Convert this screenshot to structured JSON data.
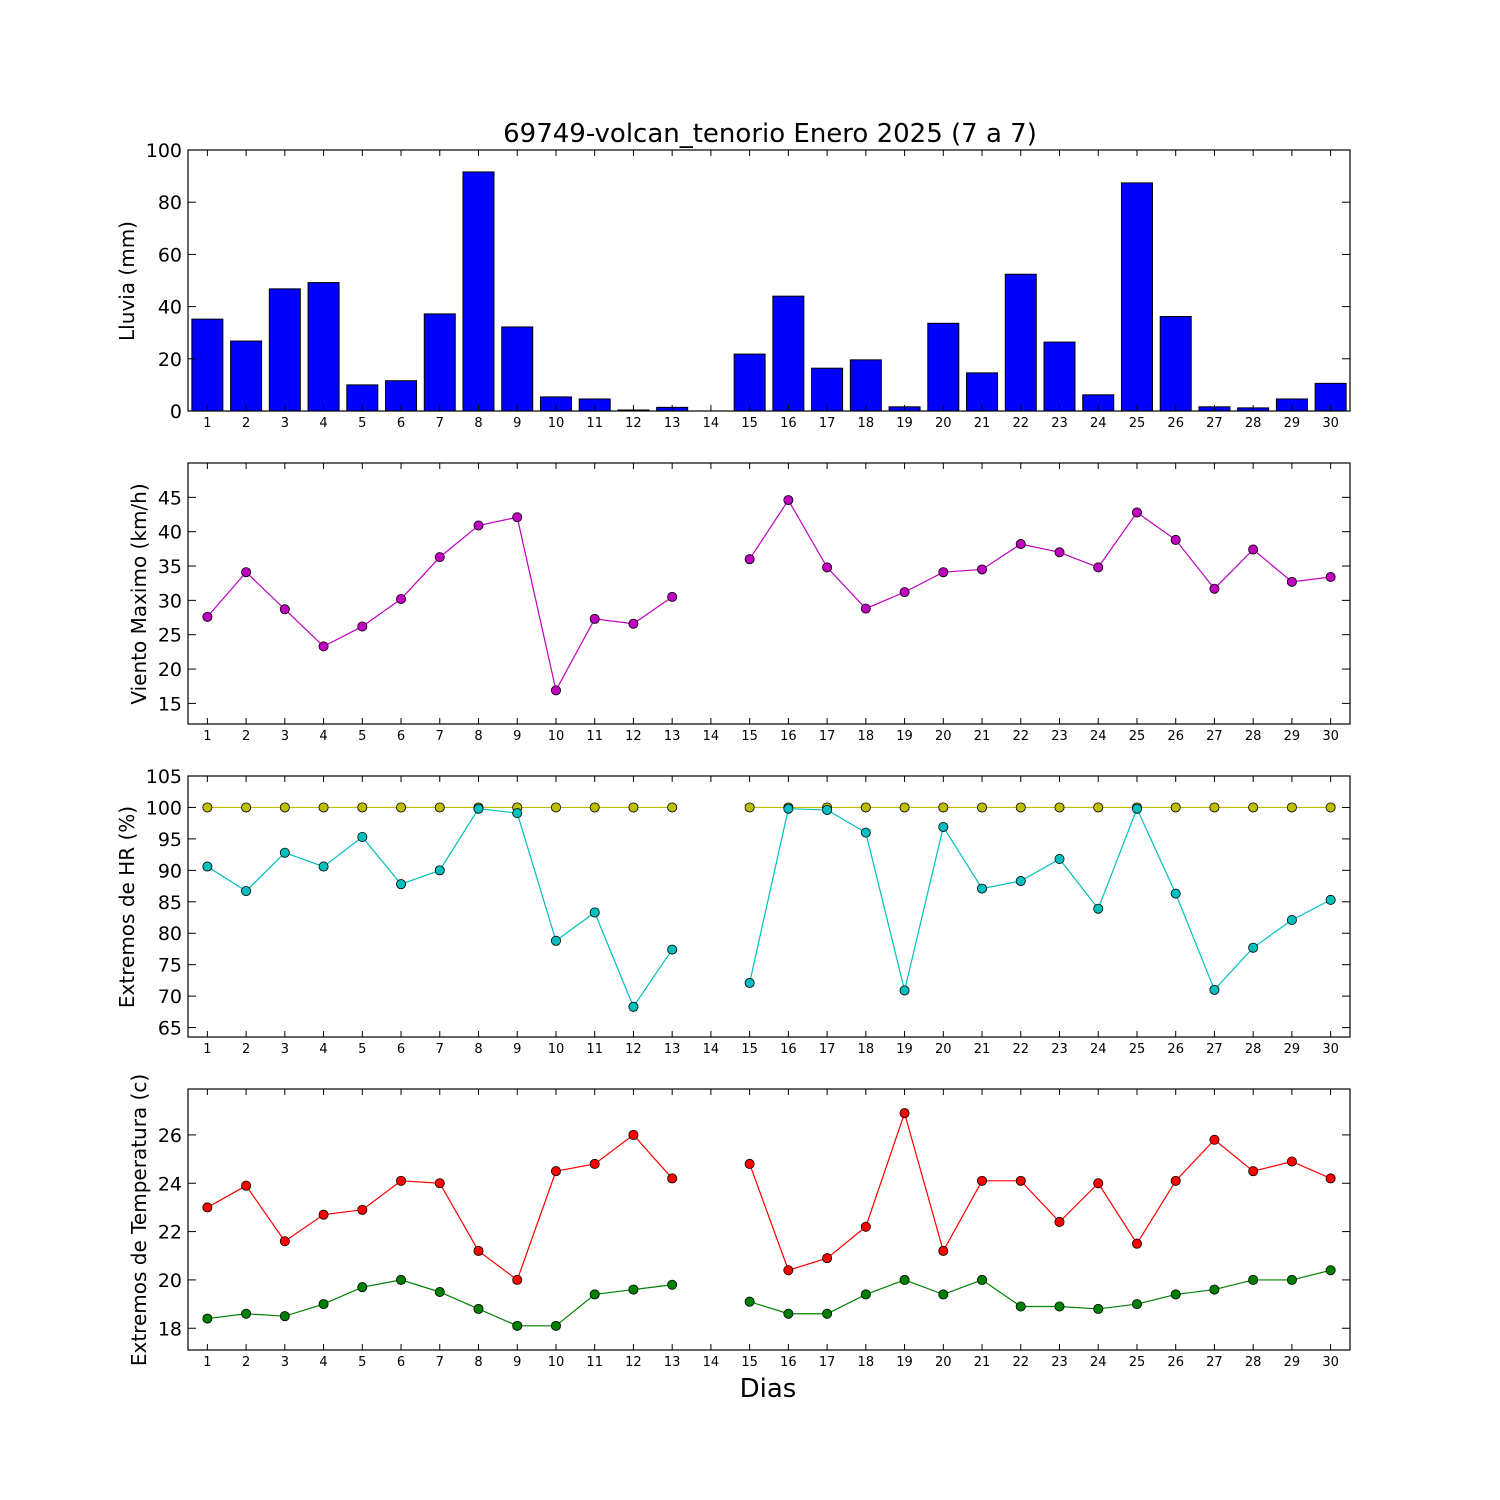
{
  "title": "69749-volcan_tenorio Enero 2025  (7 a 7)",
  "xlabel": "Dias",
  "chart_data": [
    {
      "type": "bar",
      "ylabel": "Lluvia (mm)",
      "ylim": [
        0,
        100
      ],
      "yticks": [
        0,
        20,
        40,
        60,
        80,
        100
      ],
      "categories": [
        "1",
        "2",
        "3",
        "4",
        "5",
        "6",
        "7",
        "8",
        "9",
        "10",
        "11",
        "12",
        "13",
        "14",
        "15",
        "16",
        "17",
        "18",
        "19",
        "20",
        "21",
        "22",
        "23",
        "24",
        "25",
        "26",
        "27",
        "28",
        "29",
        "30"
      ],
      "series": [
        {
          "color": "#0000ff",
          "values": [
            35.2,
            26.8,
            46.8,
            49.2,
            10.0,
            11.6,
            37.2,
            91.6,
            32.2,
            5.4,
            4.6,
            0.4,
            1.4,
            null,
            21.8,
            44.0,
            16.4,
            19.6,
            1.6,
            33.6,
            14.6,
            52.4,
            26.4,
            6.2,
            87.4,
            36.2,
            1.6,
            1.2,
            4.6,
            10.6
          ]
        }
      ]
    },
    {
      "type": "line",
      "ylabel": "Viento Maximo (km/h)",
      "ylim": [
        12,
        50
      ],
      "yticks": [
        15,
        20,
        25,
        30,
        35,
        40,
        45
      ],
      "categories": [
        "1",
        "2",
        "3",
        "4",
        "5",
        "6",
        "7",
        "8",
        "9",
        "10",
        "11",
        "12",
        "13",
        "14",
        "15",
        "16",
        "17",
        "18",
        "19",
        "20",
        "21",
        "22",
        "23",
        "24",
        "25",
        "26",
        "27",
        "28",
        "29",
        "30"
      ],
      "series": [
        {
          "color": "#bf00bf",
          "values": [
            27.6,
            34.1,
            28.7,
            23.3,
            26.2,
            30.2,
            36.3,
            40.9,
            42.1,
            16.9,
            27.3,
            26.6,
            30.5,
            null,
            36.0,
            44.6,
            34.8,
            28.8,
            31.2,
            34.1,
            34.5,
            38.2,
            37.0,
            34.8,
            42.8,
            38.8,
            31.7,
            37.4,
            32.7,
            33.4
          ]
        }
      ]
    },
    {
      "type": "line",
      "ylabel": "Extremos de HR (%)",
      "ylim": [
        63.5,
        105
      ],
      "yticks": [
        65,
        70,
        75,
        80,
        85,
        90,
        95,
        100,
        105
      ],
      "categories": [
        "1",
        "2",
        "3",
        "4",
        "5",
        "6",
        "7",
        "8",
        "9",
        "10",
        "11",
        "12",
        "13",
        "14",
        "15",
        "16",
        "17",
        "18",
        "19",
        "20",
        "21",
        "22",
        "23",
        "24",
        "25",
        "26",
        "27",
        "28",
        "29",
        "30"
      ],
      "series": [
        {
          "color": "#bfbf00",
          "values": [
            100,
            100,
            100,
            100,
            100,
            100,
            100,
            100,
            100,
            100,
            100,
            100,
            100,
            null,
            100,
            100,
            100,
            100,
            100,
            100,
            100,
            100,
            100,
            100,
            100,
            100,
            100,
            100,
            100,
            100
          ]
        },
        {
          "color": "#00bfbf",
          "values": [
            90.6,
            86.7,
            92.8,
            90.6,
            95.3,
            87.8,
            90.0,
            99.8,
            99.1,
            78.8,
            83.3,
            68.3,
            77.4,
            null,
            72.1,
            99.8,
            99.6,
            96.0,
            70.9,
            96.9,
            87.1,
            88.3,
            91.8,
            83.9,
            99.8,
            86.3,
            71.0,
            77.7,
            82.1,
            85.3
          ]
        }
      ]
    },
    {
      "type": "line",
      "ylabel": "Extremos de Temperatura (c)",
      "ylim": [
        17.1,
        27.9
      ],
      "yticks": [
        18,
        20,
        22,
        24,
        26
      ],
      "categories": [
        "1",
        "2",
        "3",
        "4",
        "5",
        "6",
        "7",
        "8",
        "9",
        "10",
        "11",
        "12",
        "13",
        "14",
        "15",
        "16",
        "17",
        "18",
        "19",
        "20",
        "21",
        "22",
        "23",
        "24",
        "25",
        "26",
        "27",
        "28",
        "29",
        "30"
      ],
      "series": [
        {
          "color": "#ff0000",
          "values": [
            23.0,
            23.9,
            21.6,
            22.7,
            22.9,
            24.1,
            24.0,
            21.2,
            20.0,
            24.5,
            24.8,
            26.0,
            24.2,
            null,
            24.8,
            20.4,
            20.9,
            22.2,
            26.9,
            21.2,
            24.1,
            24.1,
            22.4,
            24.0,
            21.5,
            24.1,
            25.8,
            24.5,
            24.9,
            24.2
          ]
        },
        {
          "color": "#008000",
          "values": [
            18.4,
            18.6,
            18.5,
            19.0,
            19.7,
            20.0,
            19.5,
            18.8,
            18.1,
            18.1,
            19.4,
            19.6,
            19.8,
            null,
            19.1,
            18.6,
            18.6,
            19.4,
            20.0,
            19.4,
            20.0,
            18.9,
            18.9,
            18.8,
            19.0,
            19.4,
            19.6,
            20.0,
            20.0,
            20.4
          ]
        }
      ]
    }
  ]
}
